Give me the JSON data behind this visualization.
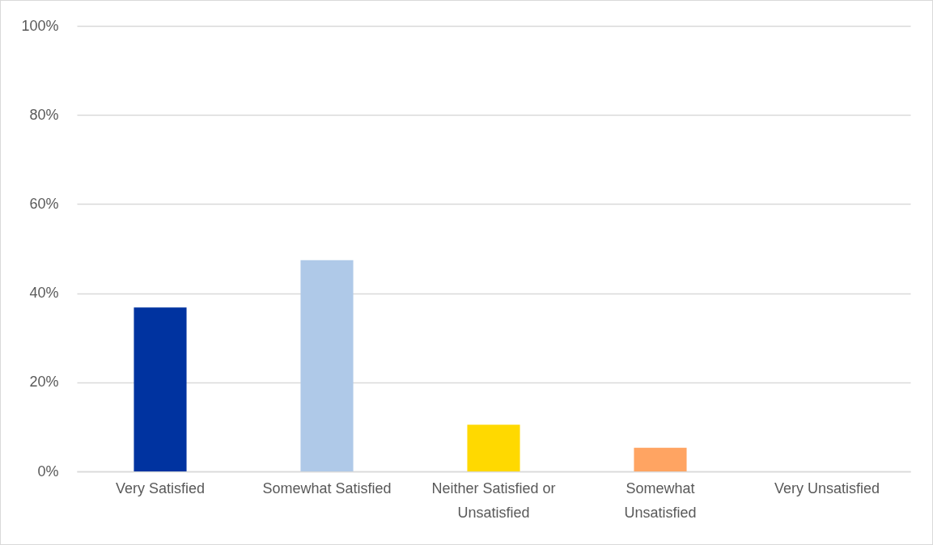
{
  "chart_data": {
    "type": "bar",
    "categories": [
      "Very Satisfied",
      "Somewhat Satisfied",
      "Neither Satisfied or Unsatisfied",
      "Somewhat Unsatisfied",
      "Very Unsatisfied"
    ],
    "values": [
      36.8,
      47.4,
      10.5,
      5.3,
      0
    ],
    "colors": [
      "#0033a0",
      "#afc9e8",
      "#ffd900",
      "#ffa462",
      null
    ],
    "ylim": [
      0,
      100
    ],
    "yticks": [
      {
        "value": 0,
        "label": "0%"
      },
      {
        "value": 20,
        "label": "20%"
      },
      {
        "value": 40,
        "label": "40%"
      },
      {
        "value": 60,
        "label": "60%"
      },
      {
        "value": 80,
        "label": "80%"
      },
      {
        "value": 100,
        "label": "100%"
      }
    ],
    "grid": "y"
  }
}
